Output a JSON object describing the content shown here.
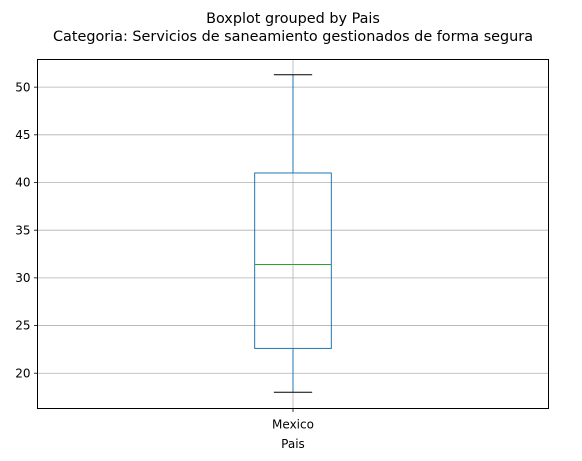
{
  "chart_data": {
    "type": "boxplot",
    "suptitle": "Boxplot grouped by Pais",
    "title": "Categoria: Servicios de saneamiento gestionados de forma segura",
    "xlabel": "Pais",
    "ylabel": "",
    "categories": [
      "Mexico"
    ],
    "boxes": [
      {
        "category": "Mexico",
        "whisker_low": 18.0,
        "q1": 22.6,
        "median": 31.4,
        "q3": 41.0,
        "whisker_high": 51.3
      }
    ],
    "ylim": [
      16.3,
      52.9
    ],
    "yticks": [
      20,
      25,
      30,
      35,
      40,
      45,
      50
    ],
    "grid": true,
    "colors": {
      "box": "#1f77b4",
      "median": "#2ca02c",
      "whisker_cap": "#000000",
      "grid": "#b0b0b0"
    }
  }
}
